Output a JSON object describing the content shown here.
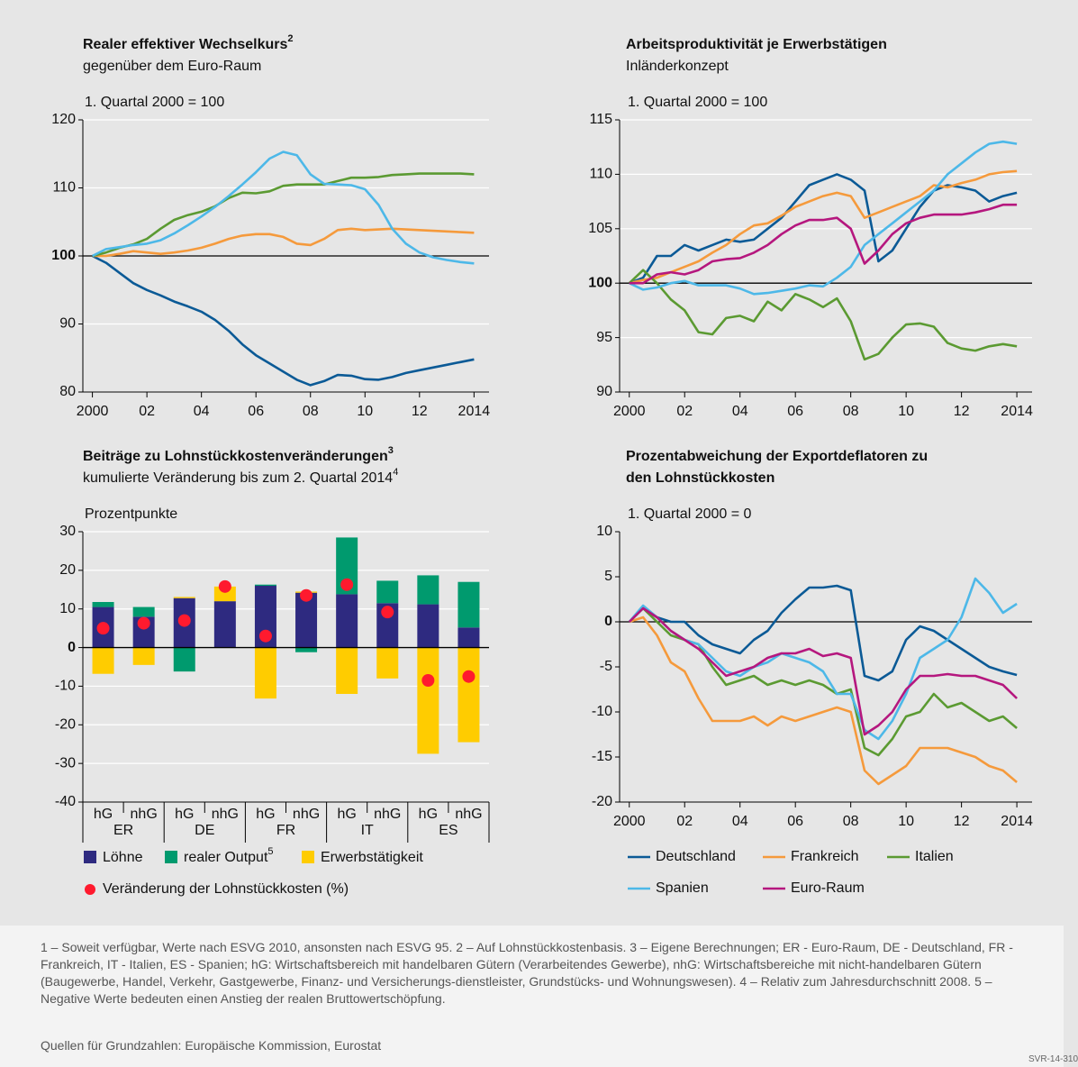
{
  "chart_data": [
    {
      "type": "line",
      "title": "Realer effektiver Wechselkurs",
      "title_note": "2",
      "subtitle": "gegenüber dem Euro-Raum",
      "unit_label": "1. Quartal 2000 = 100",
      "x": [
        2000,
        2000.5,
        2001,
        2001.5,
        2002,
        2002.5,
        2003,
        2003.5,
        2004,
        2004.5,
        2005,
        2005.5,
        2006,
        2006.5,
        2007,
        2007.5,
        2008,
        2008.5,
        2009,
        2009.5,
        2010,
        2010.5,
        2011,
        2011.5,
        2012,
        2012.5,
        2013,
        2013.5,
        2014
      ],
      "xlim": [
        1999.65,
        2014.55
      ],
      "xticks": [
        2000,
        {
          "value": 2002,
          "label": "02"
        },
        {
          "value": 2004,
          "label": "04"
        },
        {
          "value": 2006,
          "label": "06"
        },
        {
          "value": 2008,
          "label": "08"
        },
        {
          "value": 2010,
          "label": "10"
        },
        {
          "value": 2012,
          "label": "12"
        },
        2014
      ],
      "ylim": [
        80,
        120
      ],
      "yticks": [
        80,
        90,
        100,
        110,
        120
      ],
      "reference": 100,
      "grid": true,
      "series": [
        {
          "color": "#0b5a96",
          "values": [
            100,
            99,
            97.5,
            96,
            95,
            94.2,
            93.3,
            92.6,
            91.8,
            90.6,
            89,
            87,
            85.4,
            84.2,
            83,
            81.8,
            81,
            81.6,
            82.5,
            82.4,
            81.9,
            81.8,
            82.2,
            82.8,
            83.2,
            83.6,
            84,
            84.4,
            84.8
          ]
        },
        {
          "color": "#f59a3c",
          "values": [
            100,
            100,
            100.3,
            100.7,
            100.5,
            100.3,
            100.5,
            100.8,
            101.2,
            101.8,
            102.5,
            103,
            103.2,
            103.2,
            102.8,
            101.8,
            101.6,
            102.5,
            103.8,
            104,
            103.8,
            103.9,
            104,
            103.9,
            103.8,
            103.7,
            103.6,
            103.5,
            103.4
          ]
        },
        {
          "color": "#5b9a32",
          "values": [
            100,
            100.5,
            101.2,
            101.7,
            102.5,
            104,
            105.3,
            106,
            106.5,
            107.3,
            108.5,
            109.3,
            109.2,
            109.5,
            110.3,
            110.5,
            110.5,
            110.5,
            111,
            111.5,
            111.5,
            111.6,
            111.9,
            112,
            112.1,
            112.1,
            112.1,
            112.1,
            112
          ]
        },
        {
          "color": "#4db8e8",
          "values": [
            100,
            101,
            101.3,
            101.6,
            101.8,
            102.3,
            103.3,
            104.5,
            105.8,
            107.2,
            108.8,
            110.5,
            112.3,
            114.3,
            115.3,
            114.8,
            112,
            110.6,
            110.5,
            110.4,
            109.8,
            107.5,
            104,
            101.8,
            100.5,
            99.8,
            99.4,
            99.1,
            98.9
          ]
        }
      ]
    },
    {
      "type": "line",
      "title": "Arbeitsproduktivität je Erwerbstätigen",
      "subtitle": "Inländerkonzept",
      "unit_label": "1. Quartal 2000 = 100",
      "x": [
        2000,
        2000.5,
        2001,
        2001.5,
        2002,
        2002.5,
        2003,
        2003.5,
        2004,
        2004.5,
        2005,
        2005.5,
        2006,
        2006.5,
        2007,
        2007.5,
        2008,
        2008.5,
        2009,
        2009.5,
        2010,
        2010.5,
        2011,
        2011.5,
        2012,
        2012.5,
        2013,
        2013.5,
        2014
      ],
      "xlim": [
        1999.65,
        2014.55
      ],
      "xticks": [
        2000,
        {
          "value": 2002,
          "label": "02"
        },
        {
          "value": 2004,
          "label": "04"
        },
        {
          "value": 2006,
          "label": "06"
        },
        {
          "value": 2008,
          "label": "08"
        },
        {
          "value": 2010,
          "label": "10"
        },
        {
          "value": 2012,
          "label": "12"
        },
        2014
      ],
      "ylim": [
        90,
        115
      ],
      "yticks": [
        90,
        95,
        100,
        105,
        110,
        115
      ],
      "reference": 100,
      "grid": true,
      "series": [
        {
          "color": "#0b5a96",
          "values": [
            100,
            100.5,
            102.5,
            102.5,
            103.5,
            103,
            103.5,
            104,
            103.8,
            104,
            105,
            106,
            107.5,
            109,
            109.5,
            110,
            109.5,
            108.5,
            102,
            103,
            105,
            107,
            108.5,
            109,
            108.8,
            108.5,
            107.5,
            108,
            108.3
          ]
        },
        {
          "color": "#f59a3c",
          "values": [
            100,
            100.3,
            100.5,
            101,
            101.5,
            102,
            102.8,
            103.5,
            104.5,
            105.3,
            105.5,
            106.2,
            107,
            107.5,
            108,
            108.3,
            108,
            106,
            106.5,
            107,
            107.5,
            108,
            109,
            108.8,
            109.2,
            109.5,
            110,
            110.2,
            110.3
          ]
        },
        {
          "color": "#5b9a32",
          "values": [
            100,
            101.2,
            100,
            98.5,
            97.5,
            95.5,
            95.3,
            96.8,
            97,
            96.5,
            98.3,
            97.5,
            99,
            98.5,
            97.8,
            98.6,
            96.5,
            93,
            93.5,
            95,
            96.2,
            96.3,
            96,
            94.5,
            94,
            93.8,
            94.2,
            94.4,
            94.2
          ]
        },
        {
          "color": "#4db8e8",
          "values": [
            100,
            99.4,
            99.6,
            100,
            100.2,
            99.8,
            99.8,
            99.8,
            99.5,
            99,
            99.1,
            99.3,
            99.5,
            99.8,
            99.7,
            100.5,
            101.5,
            103.5,
            104.5,
            105.5,
            106.5,
            107.5,
            108.5,
            110,
            111,
            112,
            112.8,
            113,
            112.8
          ]
        },
        {
          "color": "#b5177e",
          "values": [
            100,
            100,
            100.8,
            101,
            100.8,
            101.2,
            102,
            102.2,
            102.3,
            102.8,
            103.5,
            104.5,
            105.3,
            105.8,
            105.8,
            106,
            105,
            101.8,
            103,
            104.5,
            105.5,
            106,
            106.3,
            106.3,
            106.3,
            106.5,
            106.8,
            107.2,
            107.2
          ]
        }
      ]
    },
    {
      "type": "stacked_bar",
      "title": "Beiträge zu Lohnstückkostenveränderungen",
      "title_note": "3",
      "subtitle": "kumulierte Veränderung bis zum 2. Quartal 2014",
      "subtitle_note": "4",
      "unit_label": "Prozentpunkte",
      "categories": [
        "hG",
        "nhG",
        "hG",
        "nhG",
        "hG",
        "nhG",
        "hG",
        "nhG",
        "hG",
        "nhG"
      ],
      "groups": [
        "ER",
        "DE",
        "FR",
        "IT",
        "ES"
      ],
      "ylim": [
        -40,
        30
      ],
      "yticks": [
        30,
        20,
        10,
        0,
        -10,
        -20,
        -30,
        -40
      ],
      "reference": 0,
      "grid": true,
      "series": [
        {
          "name": "Löhne",
          "color": "#2e2a80",
          "values": [
            10.5,
            8,
            12.8,
            12,
            16,
            14.2,
            13.8,
            11.5,
            11.2,
            5.2
          ]
        },
        {
          "name": "realer Output",
          "name_note": "5",
          "color": "#009a6e",
          "values": [
            1.3,
            2.5,
            -6.2,
            0,
            0.3,
            -1.2,
            14.7,
            5.8,
            7.5,
            11.8
          ]
        },
        {
          "name": "Erwerbstätigkeit",
          "color": "#ffcc00",
          "values": [
            -6.8,
            -4.5,
            0.3,
            3.8,
            -13.2,
            0.3,
            -12,
            -8,
            -27.5,
            -24.5
          ]
        }
      ],
      "markers": {
        "name": "Veränderung der Lohnstückkosten (%)",
        "color": "#ff1a2e",
        "values": [
          5,
          6.3,
          7,
          15.8,
          3,
          13.5,
          16.3,
          9.2,
          -8.5,
          -7.5
        ]
      }
    },
    {
      "type": "line",
      "title": [
        "Prozentabweichung der Exportdeflatoren zu",
        "den Lohnstückkosten"
      ],
      "unit_label": "1. Quartal 2000 = 0",
      "x": [
        2000,
        2000.5,
        2001,
        2001.5,
        2002,
        2002.5,
        2003,
        2003.5,
        2004,
        2004.5,
        2005,
        2005.5,
        2006,
        2006.5,
        2007,
        2007.5,
        2008,
        2008.5,
        2009,
        2009.5,
        2010,
        2010.5,
        2011,
        2011.5,
        2012,
        2012.5,
        2013,
        2013.5,
        2014
      ],
      "xlim": [
        1999.65,
        2014.55
      ],
      "xticks": [
        2000,
        {
          "value": 2002,
          "label": "02"
        },
        {
          "value": 2004,
          "label": "04"
        },
        {
          "value": 2006,
          "label": "06"
        },
        {
          "value": 2008,
          "label": "08"
        },
        {
          "value": 2010,
          "label": "10"
        },
        {
          "value": 2012,
          "label": "12"
        },
        2014
      ],
      "ylim": [
        -20,
        10
      ],
      "yticks": [
        10,
        5,
        0,
        -5,
        -10,
        -15,
        -20
      ],
      "reference": 0,
      "grid": false,
      "series": [
        {
          "name": "Deutschland",
          "color": "#0b5a96",
          "values": [
            0,
            1.5,
            0.5,
            0,
            0,
            -1.5,
            -2.5,
            -3,
            -3.5,
            -2,
            -1,
            1,
            2.5,
            3.8,
            3.8,
            4,
            3.5,
            -6,
            -6.5,
            -5.5,
            -2,
            -0.5,
            -1,
            -2,
            -3,
            -4,
            -5,
            -5.5,
            -5.9
          ]
        },
        {
          "name": "Frankreich",
          "color": "#f59a3c",
          "values": [
            0,
            0.5,
            -1.5,
            -4.5,
            -5.5,
            -8.5,
            -11,
            -11,
            -11,
            -10.5,
            -11.5,
            -10.5,
            -11,
            -10.5,
            -10,
            -9.5,
            -10,
            -16.5,
            -18,
            -17,
            -16,
            -14,
            -14,
            -14,
            -14.5,
            -15,
            -16,
            -16.5,
            -17.8
          ]
        },
        {
          "name": "Italien",
          "color": "#5b9a32",
          "values": [
            0,
            1.5,
            0,
            -1.5,
            -2,
            -2.5,
            -5,
            -7,
            -6.5,
            -6,
            -7,
            -6.5,
            -7,
            -6.5,
            -7,
            -8,
            -7.5,
            -14,
            -14.8,
            -13,
            -10.5,
            -10,
            -8,
            -9.5,
            -9,
            -10,
            -11,
            -10.5,
            -11.8
          ]
        },
        {
          "name": "Spanien",
          "color": "#4db8e8",
          "values": [
            0,
            1.8,
            0.5,
            -1,
            -2,
            -2.5,
            -4,
            -5.5,
            -6,
            -5,
            -4.5,
            -3.5,
            -4,
            -4.5,
            -5.5,
            -8,
            -8,
            -12,
            -13,
            -11,
            -8,
            -4,
            -3,
            -2,
            0.5,
            4.8,
            3.2,
            1,
            2
          ]
        },
        {
          "name": "Euro-Raum",
          "color": "#b5177e",
          "values": [
            0,
            1.5,
            0.5,
            -1,
            -2,
            -3,
            -4.5,
            -6,
            -5.5,
            -5,
            -4,
            -3.5,
            -3.5,
            -3,
            -3.8,
            -3.5,
            -4,
            -12.5,
            -11.5,
            -10,
            -7.5,
            -6,
            -6,
            -5.8,
            -6,
            -6,
            -6.5,
            -7,
            -8.5
          ]
        }
      ]
    }
  ],
  "footnotes": "1 – Soweit verfügbar, Werte nach ESVG 2010, ansonsten nach ESVG 95.  2 – Auf Lohnstückkostenbasis.  3 – Eigene Berechnungen; ER - Euro-Raum, DE - Deutschland, FR - Frankreich, IT - Italien, ES - Spanien; hG: Wirtschaftsbereich mit handelbaren Gütern (Verarbeitendes Gewerbe), nhG: Wirtschaftsbereiche mit nicht-handelbaren Gütern (Baugewerbe, Handel, Verkehr, Gastgewerbe, Finanz- und Versicherungs-dienstleister, Grundstücks- und Wohnungswesen).  4 – Relativ zum Jahresdurchschnitt 2008.  5 – Negative Werte bedeuten einen Anstieg der realen Bruttowertschöpfung.",
  "sources": "Quellen für Grundzahlen: Europäische Kommission, Eurostat",
  "code": "SVR-14-310"
}
